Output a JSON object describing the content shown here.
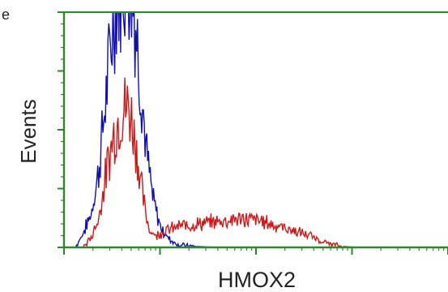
{
  "chart_data": {
    "type": "line",
    "title": "",
    "xlabel": "HMOX2",
    "ylabel": "Events",
    "cut_text": "e",
    "xlim": [
      0,
      1000
    ],
    "ylim": [
      0,
      100
    ],
    "scale": "log",
    "grid": false,
    "colors": {
      "axis": "#2a8a2a",
      "frame": "#2a8a2a"
    },
    "series": [
      {
        "color": "#1010b0",
        "x": [
          0,
          30,
          50,
          70,
          90,
          110,
          130,
          150,
          165,
          175,
          185,
          195,
          205,
          215,
          230,
          245,
          260,
          280,
          300,
          330,
          400,
          600,
          1000
        ],
        "y": [
          0,
          0,
          6,
          14,
          32,
          65,
          100,
          115,
          120,
          112,
          98,
          80,
          60,
          40,
          22,
          12,
          6,
          3,
          1,
          0.5,
          0,
          0,
          0
        ]
      },
      {
        "color": "#cc1a1a",
        "x": [
          0,
          50,
          70,
          90,
          110,
          130,
          150,
          165,
          175,
          185,
          195,
          205,
          215,
          225,
          240,
          260,
          300,
          350,
          400,
          450,
          480,
          520,
          560,
          600,
          640,
          680,
          720,
          760,
          800,
          1000
        ],
        "y": [
          0,
          0,
          4,
          12,
          32,
          48,
          58,
          60,
          56,
          46,
          34,
          22,
          12,
          7,
          5,
          7,
          9,
          10,
          11,
          12,
          12,
          11,
          9,
          7,
          5,
          2,
          0.5,
          0,
          0,
          0
        ]
      }
    ]
  }
}
